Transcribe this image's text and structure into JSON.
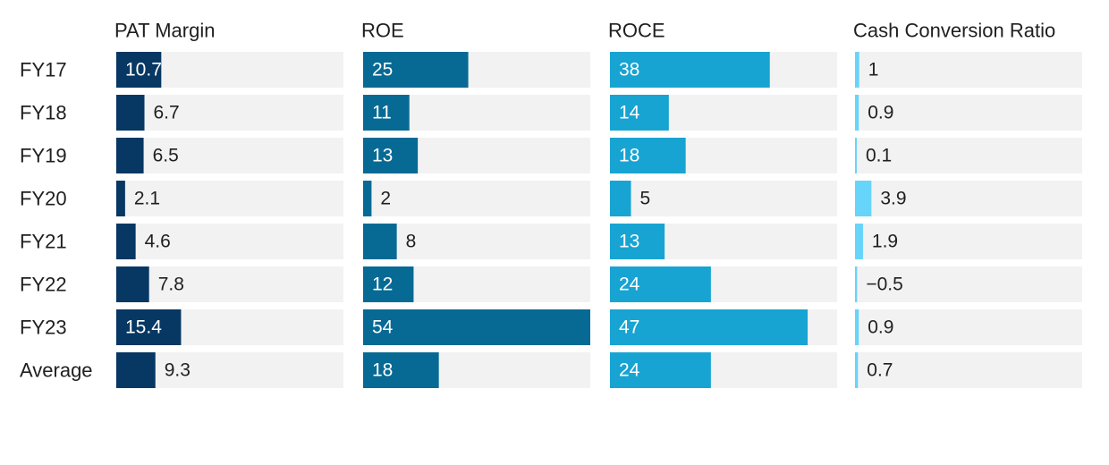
{
  "chart_data": {
    "type": "bar",
    "orientation": "horizontal",
    "layout": "small-multiples",
    "title": "",
    "categories": [
      "FY17",
      "FY18",
      "FY19",
      "FY20",
      "FY21",
      "FY22",
      "FY23",
      "Average"
    ],
    "series": [
      {
        "name": "PAT Margin",
        "color": "#073763",
        "values": [
          10.7,
          6.7,
          6.5,
          2.1,
          4.6,
          7.8,
          15.4,
          9.3
        ],
        "labels": [
          "10.7",
          "6.7",
          "6.5",
          "2.1",
          "4.6",
          "7.8",
          "15.4",
          "9.3"
        ],
        "xlim": [
          0,
          54
        ]
      },
      {
        "name": "ROE",
        "color": "#076a94",
        "values": [
          25,
          11,
          13,
          2,
          8,
          12,
          54,
          18
        ],
        "labels": [
          "25",
          "11",
          "13",
          "2",
          "8",
          "12",
          "54",
          "18"
        ],
        "xlim": [
          0,
          54
        ]
      },
      {
        "name": "ROCE",
        "color": "#18a4d2",
        "values": [
          38,
          14,
          18,
          5,
          13,
          24,
          47,
          24
        ],
        "labels": [
          "38",
          "14",
          "18",
          "5",
          "13",
          "24",
          "47",
          "24"
        ],
        "xlim": [
          0,
          54
        ]
      },
      {
        "name": "Cash Conversion Ratio",
        "color": "#67d4fa",
        "values": [
          1,
          0.9,
          0.1,
          3.9,
          1.9,
          -0.5,
          0.9,
          0.7
        ],
        "labels": [
          "1",
          "0.9",
          "0.1",
          "3.9",
          "1.9",
          "−0.5",
          "0.9",
          "0.7"
        ],
        "xlim": [
          0,
          54
        ]
      }
    ],
    "track_color": "#f2f2f2",
    "grid": false,
    "legend": "none"
  }
}
